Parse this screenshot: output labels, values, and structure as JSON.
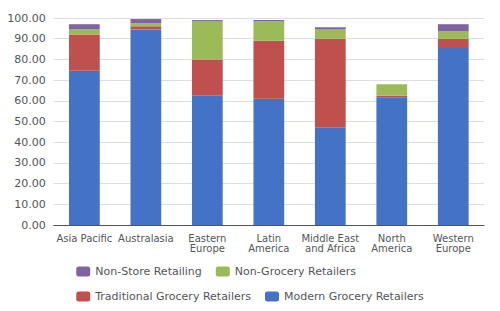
{
  "chart_data": {
    "type": "bar",
    "stacked": true,
    "grid": true,
    "legend": "bottom",
    "categories": [
      "Asia Pacific",
      "Australasia",
      "Eastern\nEurope",
      "Latin\nAmerica",
      "Middle East\nand Africa",
      "North\nAmerica",
      "Western\nEurope"
    ],
    "series": [
      {
        "name": "Modern Grocery Retailers",
        "color": "#4472C4",
        "values": [
          74.5,
          94.5,
          62.5,
          61.0,
          47.0,
          61.5,
          85.5
        ]
      },
      {
        "name": "Traditional Grocery Retailers",
        "color": "#C0504D",
        "values": [
          17.5,
          1.5,
          17.5,
          28.0,
          43.0,
          1.0,
          4.5
        ]
      },
      {
        "name": "Non-Grocery Retailers",
        "color": "#9BBB59",
        "values": [
          2.5,
          1.5,
          18.5,
          9.5,
          4.5,
          5.5,
          3.5
        ]
      },
      {
        "name": "Non-Store Retailing",
        "color": "#8064A2",
        "values": [
          2.5,
          2.0,
          0.5,
          0.5,
          1.0,
          0.0,
          3.5
        ]
      }
    ],
    "ylim": [
      0,
      100
    ],
    "yticks": [
      {
        "value": 0,
        "label": "0.00"
      },
      {
        "value": 10,
        "label": "10.00"
      },
      {
        "value": 20,
        "label": "20.00"
      },
      {
        "value": 30,
        "label": "30.00"
      },
      {
        "value": 40,
        "label": "40.00"
      },
      {
        "value": 50,
        "label": "50.00"
      },
      {
        "value": 60,
        "label": "60.00"
      },
      {
        "value": 70,
        "label": "70.00"
      },
      {
        "value": 80,
        "label": "80.00"
      },
      {
        "value": 90,
        "label": "90.00"
      },
      {
        "value": 100,
        "label": "100.00"
      }
    ]
  }
}
